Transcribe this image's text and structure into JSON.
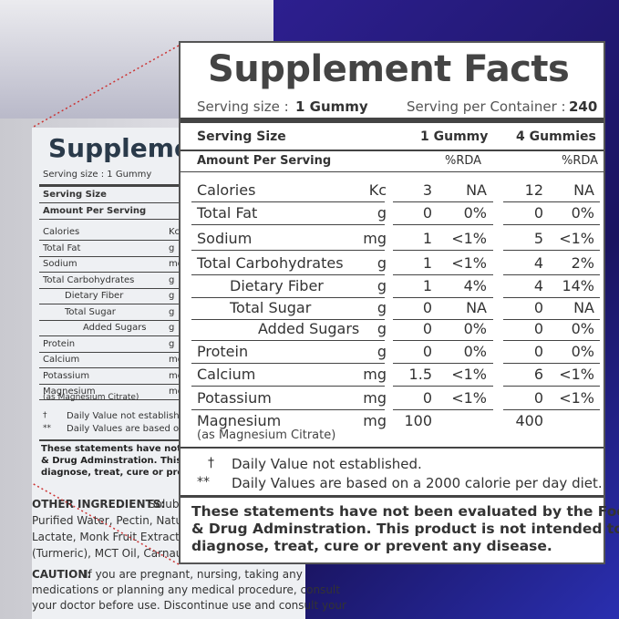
{
  "background_label": {
    "title": "Suppleme",
    "serving": "Serving size : 1 Gummy",
    "rows": [
      [
        "Serving Size",
        ""
      ],
      [
        "Amount Per Serving",
        ""
      ],
      [
        "Calories",
        "Kc"
      ],
      [
        "Total Fat",
        "g"
      ],
      [
        "Sodium",
        "mg"
      ],
      [
        "Total Carbohydrates",
        "g"
      ],
      [
        "Dietary Fiber",
        "g"
      ],
      [
        "Total Sugar",
        "g"
      ],
      [
        "Added Sugars",
        "g"
      ],
      [
        "Protein",
        "g"
      ],
      [
        "Calcium",
        "mg"
      ],
      [
        "Potassium",
        "mg"
      ],
      [
        "Magnesium",
        "mg"
      ]
    ],
    "magnesium_note": "(as Magnesium Citrate)",
    "footnotes": [
      [
        "†",
        "Daily Value not establishe"
      ],
      [
        "**",
        "Daily Values are based or"
      ]
    ],
    "statement": [
      "These statements have not",
      "& Drug Adminstration. This p",
      "diagnose, treat, cure or prev"
    ],
    "ingredients_label": "OTHER INGREDIENTS:",
    "ingredients": [
      " Soluble",
      "Purified Water, Pectin, Natural",
      "Lactate, Monk Fruit Extract, S",
      "(Turmeric), MCT Oil, Carnauba"
    ],
    "caution_label": "CAUTION:",
    "caution": [
      " If you are pregnant, nursing, taking any",
      "medications or planning any medical procedure, consult",
      "your doctor before use. Discontinue use and consult your"
    ]
  },
  "panel": {
    "title": "Supplement Facts",
    "serving_size_label": "Serving size :",
    "serving_size": "1 Gummy",
    "servings_label": "Serving per Container :",
    "servings": "240",
    "header1": [
      "Serving Size",
      "1 Gummy",
      "4 Gummies"
    ],
    "header2": [
      "Amount Per Serving",
      "%RDA",
      "%RDA"
    ],
    "rows": [
      {
        "name": "Calories",
        "unit": "Kc",
        "v1": "3",
        "r1": "NA",
        "v4": "12",
        "r4": "NA"
      },
      {
        "name": "Total Fat",
        "unit": "g",
        "v1": "0",
        "r1": "0%",
        "v4": "0",
        "r4": "0%"
      },
      {
        "name": "Sodium",
        "unit": "mg",
        "v1": "1",
        "r1": "<1%",
        "v4": "5",
        "r4": "<1%"
      },
      {
        "name": "Total Carbohydrates",
        "unit": "g",
        "v1": "1",
        "r1": "<1%",
        "v4": "4",
        "r4": "2%"
      },
      {
        "name": "Dietary Fiber",
        "unit": "g",
        "v1": "1",
        "r1": "4%",
        "v4": "4",
        "r4": "14%"
      },
      {
        "name": "Total Sugar",
        "unit": "g",
        "v1": "0",
        "r1": "NA",
        "v4": "0",
        "r4": "NA"
      },
      {
        "name": "Added Sugars",
        "unit": "g",
        "v1": "0",
        "r1": "0%",
        "v4": "0",
        "r4": "0%"
      },
      {
        "name": "Protein",
        "unit": "g",
        "v1": "0",
        "r1": "0%",
        "v4": "0",
        "r4": "0%"
      },
      {
        "name": "Calcium",
        "unit": "mg",
        "v1": "1.5",
        "r1": "<1%",
        "v4": "6",
        "r4": "<1%"
      },
      {
        "name": "Potassium",
        "unit": "mg",
        "v1": "0",
        "r1": "<1%",
        "v4": "0",
        "r4": "<1%"
      },
      {
        "name": "Magnesium",
        "sub": "(as Magnesium Citrate)",
        "unit": "mg",
        "v1": "100",
        "v4": "400"
      }
    ],
    "footnotes": [
      [
        "†",
        "Daily Value not established."
      ],
      [
        "**",
        "Daily Values are based on a 2000 calorie per day diet."
      ]
    ],
    "statement": [
      "These statements have not been evaluated by the Food",
      "& Drug Adminstration. This product is not intended to",
      "diagnose, treat, cure or prevent any disease."
    ]
  }
}
